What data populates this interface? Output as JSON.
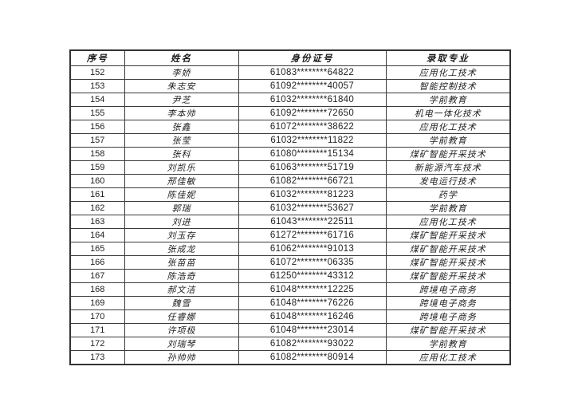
{
  "table": {
    "headers": {
      "no": "序号",
      "name": "姓名",
      "id": "身份证号",
      "major": "录取专业"
    },
    "rows": [
      {
        "no": "152",
        "name": "李娇",
        "id": "61083********64822",
        "major": "应用化工技术"
      },
      {
        "no": "153",
        "name": "朱志安",
        "id": "61092********40057",
        "major": "智能控制技术"
      },
      {
        "no": "154",
        "name": "尹芝",
        "id": "61032********61840",
        "major": "学前教育"
      },
      {
        "no": "155",
        "name": "李本帅",
        "id": "61092********72650",
        "major": "机电一体化技术"
      },
      {
        "no": "156",
        "name": "张鑫",
        "id": "61072********38622",
        "major": "应用化工技术"
      },
      {
        "no": "157",
        "name": "张莹",
        "id": "61032********11822",
        "major": "学前教育"
      },
      {
        "no": "158",
        "name": "张科",
        "id": "61080********15134",
        "major": "煤矿智能开采技术"
      },
      {
        "no": "159",
        "name": "刘凯乐",
        "id": "61063********51719",
        "major": "新能源汽车技术"
      },
      {
        "no": "160",
        "name": "邢佳敏",
        "id": "61082********66721",
        "major": "发电运行技术"
      },
      {
        "no": "161",
        "name": "陈佳妮",
        "id": "61032********81223",
        "major": "药学"
      },
      {
        "no": "162",
        "name": "郭瑞",
        "id": "61032********53627",
        "major": "学前教育"
      },
      {
        "no": "163",
        "name": "刘进",
        "id": "61043********22511",
        "major": "应用化工技术"
      },
      {
        "no": "164",
        "name": "刘玉存",
        "id": "61272********61716",
        "major": "煤矿智能开采技术"
      },
      {
        "no": "165",
        "name": "张成龙",
        "id": "61062********91013",
        "major": "煤矿智能开采技术"
      },
      {
        "no": "166",
        "name": "张苗苗",
        "id": "61072********06335",
        "major": "煤矿智能开采技术"
      },
      {
        "no": "167",
        "name": "陈浩奇",
        "id": "61250********43312",
        "major": "煤矿智能开采技术"
      },
      {
        "no": "168",
        "name": "郝文洁",
        "id": "61048********12225",
        "major": "跨境电子商务"
      },
      {
        "no": "169",
        "name": "魏雪",
        "id": "61048********76226",
        "major": "跨境电子商务"
      },
      {
        "no": "170",
        "name": "任睿娜",
        "id": "61048********16246",
        "major": "跨境电子商务"
      },
      {
        "no": "171",
        "name": "许项极",
        "id": "61048********23014",
        "major": "煤矿智能开采技术"
      },
      {
        "no": "172",
        "name": "刘瑞琴",
        "id": "61082********93022",
        "major": "学前教育"
      },
      {
        "no": "173",
        "name": "孙帅帅",
        "id": "61082********80914",
        "major": "应用化工技术"
      }
    ]
  }
}
